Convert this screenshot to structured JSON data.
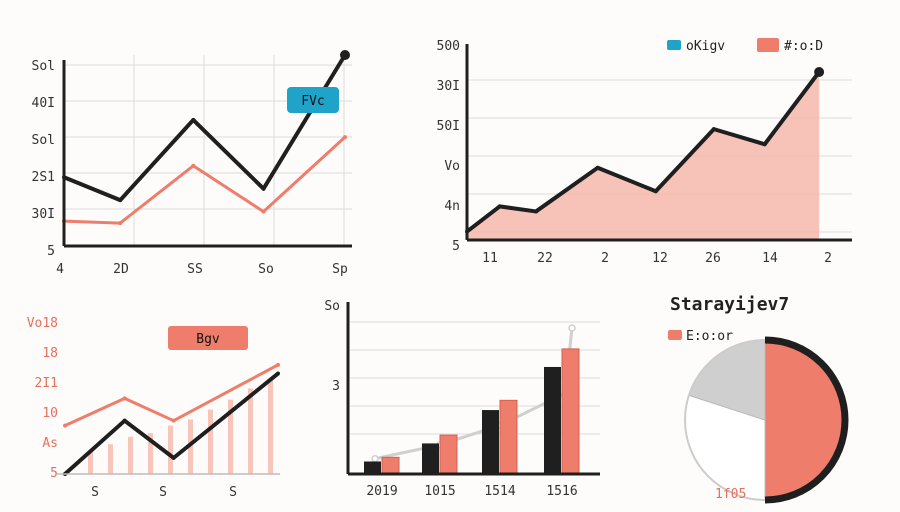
{
  "colors": {
    "ink": "#1f1f1f",
    "coral": "#ef7d6b",
    "coral_fill": "#f6b7aa",
    "teal": "#1fa3c9",
    "grey": "#cfcfcf",
    "grid": "#dddddd"
  },
  "chart_data": [
    {
      "type": "line",
      "x_ticks": [
        "4",
        "2D",
        "SS",
        "So",
        "Sp"
      ],
      "y_ticks": [
        "Sol",
        "40I",
        "Sol",
        "2S1",
        "30I",
        "5"
      ],
      "y_range": [
        0,
        100
      ],
      "series": [
        {
          "name": "",
          "x": [
            0,
            0.2,
            0.46,
            0.71,
            1
          ],
          "values": [
            36,
            24,
            66,
            30,
            100
          ]
        },
        {
          "name": "",
          "x": [
            0,
            0.2,
            0.46,
            0.71,
            1
          ],
          "values": [
            13,
            12,
            42,
            18,
            57
          ]
        }
      ],
      "badge": "FVc"
    },
    {
      "type": "area",
      "x_ticks": [
        "11",
        "22",
        "2",
        "12",
        "26",
        "14",
        "2"
      ],
      "y_ticks": [
        "500",
        "30I",
        "50I",
        "Vo",
        "4n",
        "5"
      ],
      "y_range": [
        0,
        100
      ],
      "x": [
        0,
        0.09,
        0.19,
        0.36,
        0.52,
        0.68,
        0.82,
        0.97
      ],
      "values": [
        5,
        20,
        17,
        43,
        29,
        66,
        57,
        100
      ],
      "legend": [
        "oKigv",
        "#:o:D"
      ]
    },
    {
      "type": "line",
      "x_ticks": [
        "S",
        "S",
        "S"
      ],
      "y_ticks": [
        "Vo18",
        "18",
        "2I1",
        "10",
        "As",
        "5"
      ],
      "y_range": [
        0,
        100
      ],
      "series": [
        {
          "name": "",
          "x": [
            0,
            0.28,
            0.51,
            1
          ],
          "values": [
            0,
            43,
            13,
            81
          ]
        },
        {
          "name": "",
          "x": [
            0,
            0.28,
            0.51,
            1
          ],
          "values": [
            39,
            61,
            43,
            88
          ]
        }
      ],
      "bars": [
        18,
        24,
        30,
        33,
        39,
        44,
        52,
        60,
        69,
        76
      ],
      "badge": "Bgv"
    },
    {
      "type": "bar",
      "categories": [
        "2019",
        "1015",
        "1514",
        "1516"
      ],
      "y_ticks": [
        "So",
        "3"
      ],
      "y_range": [
        0,
        100
      ],
      "series": [
        {
          "name": "",
          "values": [
            9,
            22,
            46,
            77
          ]
        },
        {
          "name": "",
          "values": [
            12,
            28,
            53,
            90
          ]
        }
      ],
      "trend": [
        11,
        21,
        35,
        58,
        100
      ]
    },
    {
      "type": "pie",
      "title": "Starayijev7",
      "legend": [
        "E:o:or"
      ],
      "values": [
        50,
        30,
        20
      ],
      "colors": [
        "#ef7d6b",
        "#ffffff",
        "#cfcfcf"
      ],
      "footnote": "1f05"
    }
  ]
}
